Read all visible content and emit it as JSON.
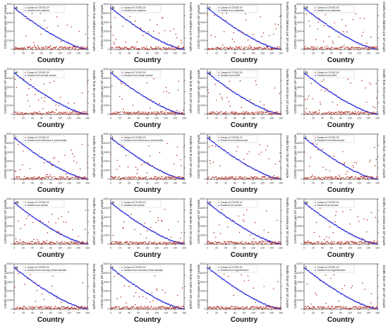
{
  "figure": {
    "x_axis_label": "Country",
    "x_ticks": [
      0,
      20,
      40,
      60,
      80,
      100,
      120,
      140,
      160
    ],
    "y_left_label": "COVID-19 cases per 10⁵ people",
    "y_left_ticks": [
      0,
      1000,
      2000,
      3000,
      4000,
      5000
    ],
    "colors": {
      "cases": "#b22a1e",
      "deaths": "#2626d9",
      "axis": "#222222"
    },
    "legend_cases_label": "Cases of COVID-19"
  },
  "chart_data": [
    {
      "type": "scatter",
      "panel": "a",
      "legend_deaths_label": "Deaths from asthma",
      "y_right_label": "Deaths from asthma per 10⁵ people"
    },
    {
      "type": "scatter",
      "panel": "b",
      "legend_deaths_label": "Deaths from asthma",
      "y_right_label": "Deaths from asthma per 10⁵ people"
    },
    {
      "type": "scatter",
      "panel": "c",
      "legend_deaths_label": "Deaths from diabetes",
      "y_right_label": "Deaths from diabetes per 10⁵ people"
    },
    {
      "type": "scatter",
      "panel": "d",
      "legend_deaths_label": "Deaths from diabetes",
      "y_right_label": "Deaths from diabetes per 10⁵ people"
    },
    {
      "type": "scatter",
      "panel": "e",
      "legend_deaths_label": "Deaths from breast cancer",
      "y_right_label": "Deaths from BC per 10⁵ people"
    },
    {
      "type": "scatter",
      "panel": "f",
      "legend_deaths_label": "Deaths from breast cancer",
      "y_right_label": "Deaths from BC per 10⁵ people"
    },
    {
      "type": "scatter",
      "panel": "g",
      "legend_deaths_label": "Deaths from AIDS",
      "y_right_label": "Deaths from AIDS per 10⁵ people"
    },
    {
      "type": "scatter",
      "panel": "h",
      "legend_deaths_label": "Deaths from AIDS",
      "y_right_label": "Deaths from AIDS per 10⁵ people"
    },
    {
      "type": "scatter",
      "panel": "i",
      "legend_deaths_label": "Deaths from influenza & pneumonia",
      "y_right_label": "Deaths from IP per 10⁵ people"
    },
    {
      "type": "scatter",
      "panel": "j",
      "legend_deaths_label": "Deaths from influenza & pneumonia",
      "y_right_label": "Deaths from IP per 10⁵ people"
    },
    {
      "type": "scatter",
      "panel": "k",
      "legend_deaths_label": "Deaths from tuberculosis",
      "y_right_label": "Deaths from TB per 10⁵ people"
    },
    {
      "type": "scatter",
      "panel": "l",
      "legend_deaths_label": "Deaths from tuberculosis",
      "y_right_label": "Deaths from TB per 10⁵ people"
    },
    {
      "type": "scatter",
      "panel": "m",
      "legend_deaths_label": "Deaths from stroke",
      "y_right_label": "Deaths from stroke per 10⁵ people"
    },
    {
      "type": "scatter",
      "panel": "n",
      "legend_deaths_label": "Deaths from stroke",
      "y_right_label": "Deaths from stroke per 10⁵ people"
    },
    {
      "type": "scatter",
      "panel": "o",
      "legend_deaths_label": "Deaths from smoke",
      "y_right_label": "Deaths from smoke per 10⁵ people"
    },
    {
      "type": "scatter",
      "panel": "p",
      "legend_deaths_label": "Deaths from smoke",
      "y_right_label": "Deaths from smoke per 10⁵ people"
    },
    {
      "type": "scatter",
      "panel": "q",
      "legend_deaths_label": "Deaths from coronary heart disease",
      "y_right_label": "Deaths from CHD per 10⁵ people"
    },
    {
      "type": "scatter",
      "panel": "r",
      "legend_deaths_label": "Deaths from coronary heart disease",
      "y_right_label": "Deaths from CHD per 10⁵ people"
    },
    {
      "type": "scatter",
      "panel": "s",
      "legend_deaths_label": "Deaths from hypertension",
      "y_right_label": "Deaths from HT per 10⁵ people"
    },
    {
      "type": "scatter",
      "panel": "t",
      "legend_deaths_label": "Deaths from hypertension",
      "y_right_label": "Deaths from HT per 10⁵ people"
    }
  ]
}
